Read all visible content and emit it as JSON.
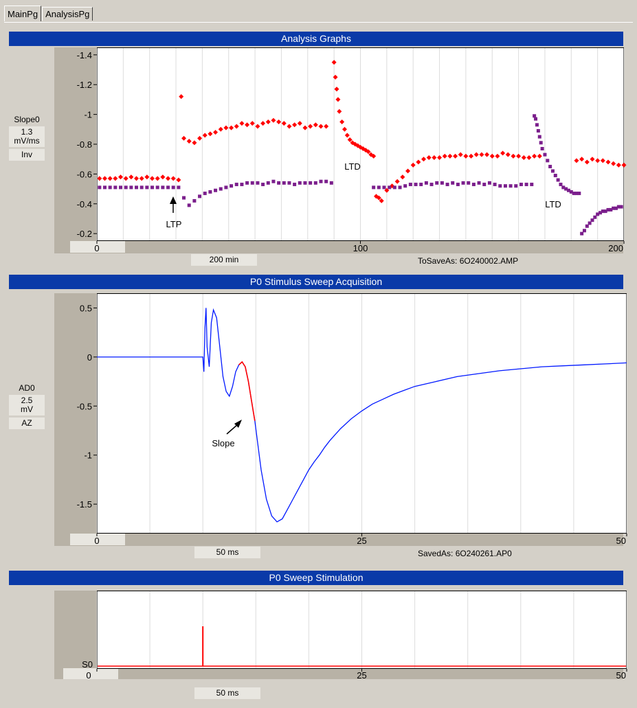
{
  "tabs": [
    {
      "label": "MainPg",
      "active": true
    },
    {
      "label": "AnalysisPg",
      "active": false
    }
  ],
  "panels": {
    "analysis": {
      "title": "Analysis Graphs",
      "channel": "Slope0",
      "scale_value": "1.3",
      "unit": "mV/ms",
      "mode": "Inv",
      "x_window_label": "200 min",
      "x_start_box": "",
      "status": "ToSaveAs: 6O240002.AMP",
      "annotations": [
        "LTP",
        "LTD",
        "LTD"
      ]
    },
    "acquisition": {
      "title": "P0 Stimulus Sweep Acquisition",
      "channel": "AD0",
      "scale_value": "2.5",
      "unit": "mV",
      "mode": "AZ",
      "x_window_label": "50 ms",
      "status": "SavedAs: 6O240261.AP0",
      "annotation": "Slope"
    },
    "stimulation": {
      "title": "P0 Sweep Stimulation",
      "channel": "S0",
      "x_window_label": "50 ms"
    }
  },
  "colors": {
    "banner": "#0a3aa8",
    "series_red": "#ff0000",
    "series_purple": "#7b1f8c",
    "trace_blue": "#0018ff",
    "gutter": "#b8b2a6"
  },
  "chart_data": [
    {
      "type": "scatter",
      "panel": "analysis",
      "xlim": [
        0,
        200
      ],
      "ylim": [
        -1.45,
        -0.15
      ],
      "inverted_y": true,
      "xticks": [
        "0",
        "100",
        "200"
      ],
      "yticks": [
        "-1.4",
        "-1.2",
        "-1",
        "-0.8",
        "-0.6",
        "-0.4",
        "-0.2"
      ],
      "yticks_values": [
        -1.4,
        -1.2,
        -1.0,
        -0.8,
        -0.6,
        -0.4,
        -0.2
      ],
      "xticks_values": [
        0,
        100,
        200
      ],
      "series": [
        {
          "color": "red",
          "marker": "diamond",
          "x": [
            1,
            3,
            5,
            7,
            9,
            11,
            13,
            15,
            17,
            19,
            21,
            23,
            25,
            27,
            29,
            31,
            32,
            33,
            35,
            37,
            39,
            41,
            43,
            45,
            47,
            49,
            51,
            53,
            55,
            57,
            59,
            61,
            63,
            65,
            67,
            69,
            71,
            73,
            75,
            77,
            79,
            81,
            83,
            85,
            87,
            90,
            90.5,
            91,
            91.5,
            92,
            93,
            94,
            95,
            96,
            97,
            98,
            99,
            100,
            101,
            102,
            103,
            104,
            105,
            106,
            107,
            108,
            110,
            112,
            114,
            116,
            118,
            120,
            122,
            124,
            126,
            128,
            130,
            132,
            134,
            136,
            138,
            140,
            142,
            144,
            146,
            148,
            150,
            152,
            154,
            156,
            158,
            160,
            162,
            164,
            166,
            168,
            182,
            184,
            186,
            188,
            190,
            192,
            194,
            196,
            198,
            200
          ],
          "y": [
            -0.57,
            -0.57,
            -0.57,
            -0.57,
            -0.58,
            -0.57,
            -0.58,
            -0.57,
            -0.57,
            -0.58,
            -0.57,
            -0.57,
            -0.58,
            -0.57,
            -0.57,
            -0.56,
            -1.12,
            -0.84,
            -0.82,
            -0.81,
            -0.84,
            -0.86,
            -0.87,
            -0.88,
            -0.9,
            -0.91,
            -0.91,
            -0.92,
            -0.94,
            -0.93,
            -0.94,
            -0.92,
            -0.94,
            -0.95,
            -0.96,
            -0.95,
            -0.94,
            -0.92,
            -0.93,
            -0.94,
            -0.91,
            -0.92,
            -0.93,
            -0.92,
            -0.92,
            -1.35,
            -1.25,
            -1.17,
            -1.1,
            -1.02,
            -0.95,
            -0.9,
            -0.86,
            -0.83,
            -0.81,
            -0.8,
            -0.79,
            -0.78,
            -0.77,
            -0.76,
            -0.75,
            -0.73,
            -0.72,
            -0.45,
            -0.44,
            -0.42,
            -0.49,
            -0.52,
            -0.55,
            -0.58,
            -0.62,
            -0.66,
            -0.68,
            -0.7,
            -0.71,
            -0.71,
            -0.71,
            -0.72,
            -0.72,
            -0.72,
            -0.73,
            -0.72,
            -0.72,
            -0.73,
            -0.73,
            -0.73,
            -0.72,
            -0.72,
            -0.74,
            -0.73,
            -0.72,
            -0.72,
            -0.71,
            -0.71,
            -0.72,
            -0.72,
            -0.69,
            -0.7,
            -0.68,
            -0.7,
            -0.69,
            -0.69,
            -0.68,
            -0.67,
            -0.66,
            -0.66
          ]
        },
        {
          "color": "purple",
          "marker": "square",
          "x": [
            1,
            3,
            5,
            7,
            9,
            11,
            13,
            15,
            17,
            19,
            21,
            23,
            25,
            27,
            29,
            31,
            33,
            35,
            37,
            39,
            41,
            43,
            45,
            47,
            49,
            51,
            53,
            55,
            57,
            59,
            61,
            63,
            65,
            67,
            69,
            71,
            73,
            75,
            77,
            79,
            81,
            83,
            85,
            87,
            89,
            105,
            107,
            109,
            111,
            113,
            115,
            117,
            119,
            121,
            123,
            125,
            127,
            129,
            131,
            133,
            135,
            137,
            139,
            141,
            143,
            145,
            147,
            149,
            151,
            153,
            155,
            157,
            159,
            161,
            163,
            165,
            166,
            166.5,
            167,
            167.5,
            168,
            168.5,
            169,
            170,
            171,
            172,
            173,
            174,
            175,
            176,
            177,
            178,
            179,
            180,
            181,
            182,
            183,
            184,
            185,
            186,
            187,
            188,
            189,
            190,
            191,
            192,
            193,
            194,
            195,
            196,
            197,
            198,
            199
          ],
          "y": [
            -0.51,
            -0.51,
            -0.51,
            -0.51,
            -0.51,
            -0.51,
            -0.51,
            -0.51,
            -0.51,
            -0.51,
            -0.51,
            -0.51,
            -0.51,
            -0.51,
            -0.51,
            -0.51,
            -0.44,
            -0.39,
            -0.42,
            -0.45,
            -0.47,
            -0.48,
            -0.49,
            -0.5,
            -0.51,
            -0.52,
            -0.53,
            -0.53,
            -0.54,
            -0.54,
            -0.54,
            -0.53,
            -0.54,
            -0.55,
            -0.54,
            -0.54,
            -0.54,
            -0.53,
            -0.54,
            -0.54,
            -0.54,
            -0.54,
            -0.55,
            -0.55,
            -0.54,
            -0.51,
            -0.51,
            -0.51,
            -0.51,
            -0.51,
            -0.51,
            -0.52,
            -0.53,
            -0.53,
            -0.53,
            -0.54,
            -0.53,
            -0.54,
            -0.54,
            -0.53,
            -0.54,
            -0.53,
            -0.54,
            -0.54,
            -0.53,
            -0.54,
            -0.53,
            -0.54,
            -0.53,
            -0.52,
            -0.52,
            -0.52,
            -0.52,
            -0.53,
            -0.53,
            -0.53,
            -0.99,
            -0.97,
            -0.93,
            -0.89,
            -0.85,
            -0.81,
            -0.77,
            -0.73,
            -0.69,
            -0.65,
            -0.62,
            -0.59,
            -0.56,
            -0.53,
            -0.51,
            -0.5,
            -0.49,
            -0.48,
            -0.47,
            -0.47,
            -0.47,
            -0.2,
            -0.22,
            -0.25,
            -0.27,
            -0.29,
            -0.31,
            -0.33,
            -0.34,
            -0.35,
            -0.35,
            -0.36,
            -0.36,
            -0.37,
            -0.37,
            -0.38,
            -0.38
          ]
        }
      ]
    },
    {
      "type": "line",
      "panel": "acquisition",
      "xlim": [
        0,
        50
      ],
      "ylim": [
        -1.8,
        0.65
      ],
      "xticks": [
        "0",
        "25",
        "50"
      ],
      "xticks_values": [
        0,
        25,
        50
      ],
      "yticks": [
        "0.5",
        "0",
        "-0.5",
        "-1",
        "-1.5"
      ],
      "yticks_values": [
        0.5,
        0,
        -0.5,
        -1,
        -1.5
      ],
      "trace": {
        "x": [
          0,
          2,
          4,
          6,
          8,
          9.5,
          10,
          10.1,
          10.2,
          10.3,
          10.4,
          10.6,
          10.8,
          11,
          11.3,
          11.6,
          11.9,
          12.2,
          12.5,
          12.8,
          13.1,
          13.4,
          13.7,
          14,
          14.3,
          14.6,
          14.9,
          15.2,
          15.5,
          16,
          16.5,
          17,
          17.5,
          18,
          18.5,
          19,
          19.5,
          20,
          20.5,
          21,
          21.5,
          22,
          23,
          24,
          25,
          26,
          27,
          28,
          29,
          30,
          32,
          34,
          36,
          38,
          40,
          42,
          44,
          46,
          48,
          50
        ],
        "y": [
          0,
          0,
          0,
          0,
          0,
          0,
          0,
          -0.15,
          0.3,
          0.5,
          0.1,
          -0.1,
          0.35,
          0.48,
          0.4,
          0.1,
          -0.2,
          -0.35,
          -0.4,
          -0.3,
          -0.15,
          -0.08,
          -0.05,
          -0.1,
          -0.25,
          -0.45,
          -0.65,
          -0.9,
          -1.15,
          -1.45,
          -1.62,
          -1.68,
          -1.65,
          -1.55,
          -1.45,
          -1.35,
          -1.25,
          -1.15,
          -1.07,
          -1.0,
          -0.92,
          -0.85,
          -0.73,
          -0.63,
          -0.55,
          -0.48,
          -0.43,
          -0.38,
          -0.34,
          -0.3,
          -0.25,
          -0.2,
          -0.17,
          -0.14,
          -0.12,
          -0.1,
          -0.09,
          -0.08,
          -0.07,
          -0.06
        ]
      },
      "slope_segment": {
        "x_start": 13.2,
        "x_end": 15.0
      }
    },
    {
      "type": "line",
      "panel": "stimulation",
      "xlim": [
        0,
        50
      ],
      "xticks": [
        "0",
        "25",
        "50"
      ],
      "xticks_values": [
        0,
        25,
        50
      ],
      "baseline_label": "S0",
      "pulse": {
        "x": 10
      }
    }
  ]
}
